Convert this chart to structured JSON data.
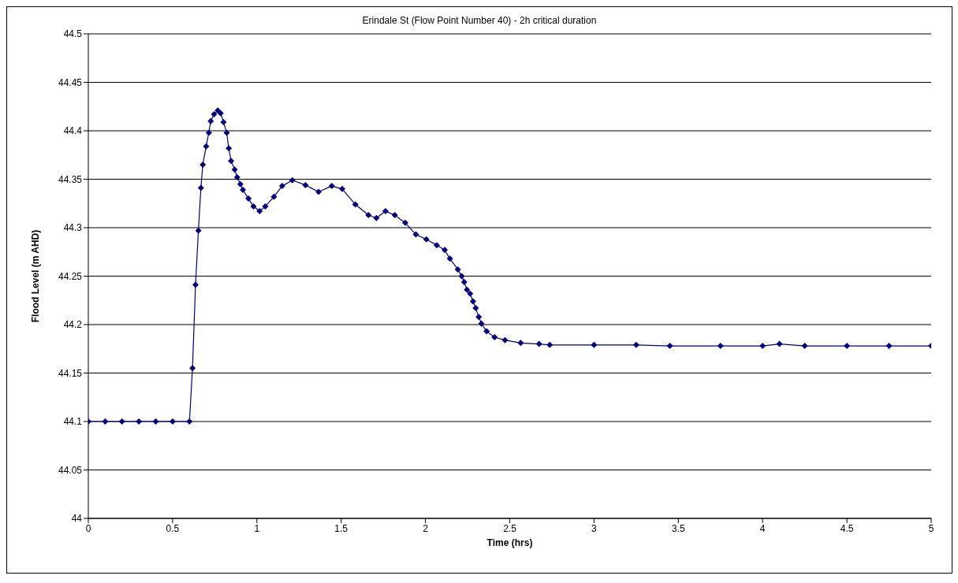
{
  "chart_data": {
    "type": "line",
    "title": "Erindale St (Flow Point Number 40) - 2h critical duration",
    "xlabel": "Time (hrs)",
    "ylabel": "Flood Level (m AHD)",
    "x": [
      0,
      0.1,
      0.2,
      0.3,
      0.4,
      0.5,
      0.6,
      0.618,
      0.636,
      0.653,
      0.668,
      0.679,
      0.699,
      0.715,
      0.726,
      0.746,
      0.768,
      0.785,
      0.802,
      0.821,
      0.833,
      0.847,
      0.868,
      0.883,
      0.902,
      0.917,
      0.95,
      0.98,
      1.016,
      1.05,
      1.101,
      1.15,
      1.21,
      1.288,
      1.366,
      1.444,
      1.506,
      1.584,
      1.662,
      1.709,
      1.763,
      1.818,
      1.88,
      1.943,
      2.005,
      2.067,
      2.114,
      2.145,
      2.192,
      2.215,
      2.23,
      2.246,
      2.265,
      2.282,
      2.298,
      2.316,
      2.332,
      2.363,
      2.41,
      2.472,
      2.565,
      2.674,
      2.737,
      3,
      3.25,
      3.45,
      3.75,
      4,
      4.1,
      4.25,
      4.5,
      4.75,
      5
    ],
    "series": [
      {
        "color": "#000080",
        "values": [
          44.1,
          44.1,
          44.1,
          44.1,
          44.1,
          44.1,
          44.1,
          44.155,
          44.241,
          44.297,
          44.341,
          44.365,
          44.384,
          44.398,
          44.41,
          44.417,
          44.421,
          44.418,
          44.409,
          44.398,
          44.382,
          44.369,
          44.36,
          44.352,
          44.345,
          44.339,
          44.33,
          44.322,
          44.317,
          44.322,
          44.332,
          44.343,
          44.349,
          44.344,
          44.337,
          44.343,
          44.34,
          44.324,
          44.313,
          44.31,
          44.317,
          44.313,
          44.305,
          44.293,
          44.288,
          44.282,
          44.277,
          44.268,
          44.257,
          44.25,
          44.244,
          44.236,
          44.232,
          44.224,
          44.217,
          44.208,
          44.201,
          44.193,
          44.187,
          44.184,
          44.181,
          44.18,
          44.179,
          44.179,
          44.179,
          44.178,
          44.178,
          44.178,
          44.18,
          44.178,
          44.178,
          44.178,
          44.178
        ]
      }
    ],
    "xlim": [
      0,
      5
    ],
    "xticks": [
      0,
      0.5,
      1,
      1.5,
      2,
      2.5,
      3,
      3.5,
      4,
      4.5,
      5
    ],
    "ylim": [
      44,
      44.5
    ],
    "yticks": [
      44,
      44.05,
      44.1,
      44.15,
      44.2,
      44.25,
      44.3,
      44.35,
      44.4,
      44.45,
      44.5
    ],
    "grid": "y",
    "marker": "diamond",
    "line_style": "solid",
    "legend": false
  }
}
